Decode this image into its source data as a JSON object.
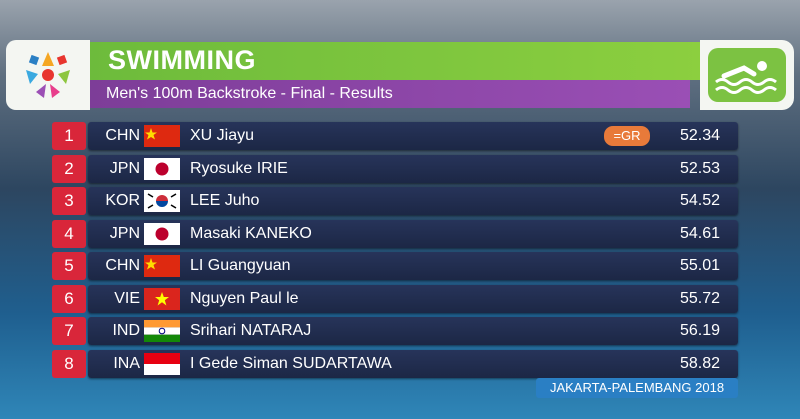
{
  "header": {
    "title": "SWIMMING",
    "subtitle": "Men's 100m Backstroke - Final - Results"
  },
  "table": {
    "rows": [
      {
        "rank": "1",
        "country": "CHN",
        "name": "XU Jiayu",
        "record": "=GR",
        "time": "52.34"
      },
      {
        "rank": "2",
        "country": "JPN",
        "name": "Ryosuke IRIE",
        "time": "52.53"
      },
      {
        "rank": "3",
        "country": "KOR",
        "name": "LEE Juho",
        "time": "54.52"
      },
      {
        "rank": "4",
        "country": "JPN",
        "name": "Masaki KANEKO",
        "time": "54.61"
      },
      {
        "rank": "5",
        "country": "CHN",
        "name": "LI Guangyuan",
        "time": "55.01"
      },
      {
        "rank": "6",
        "country": "VIE",
        "name": "Nguyen Paul le",
        "time": "55.72"
      },
      {
        "rank": "7",
        "country": "IND",
        "name": "Srihari NATARAJ",
        "time": "56.19"
      },
      {
        "rank": "8",
        "country": "INA",
        "name": "I Gede Siman SUDARTAWA",
        "time": "58.82"
      }
    ]
  },
  "footer": "JAKARTA-PALEMBANG 2018"
}
